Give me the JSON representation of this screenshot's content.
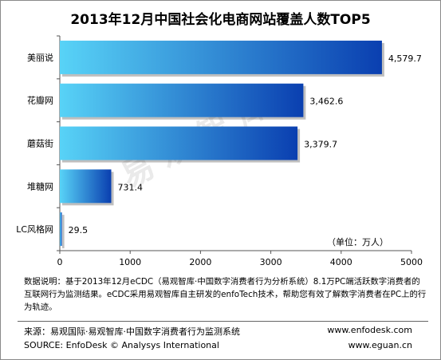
{
  "chart_data": {
    "type": "bar",
    "orientation": "horizontal",
    "title": "2013年12月中国社会化电商网站覆盖人数TOP5",
    "categories": [
      "美丽说",
      "花瓣网",
      "蘑菇街",
      "堆糖网",
      "LC风格网"
    ],
    "values": [
      4579.7,
      3462.6,
      3379.7,
      731.4,
      29.5
    ],
    "value_labels": [
      "4,579.7",
      "3,462.6",
      "3,379.7",
      "731.4",
      "29.5"
    ],
    "xlim": [
      0,
      5000
    ],
    "xticks": [
      "0",
      "1000",
      "2000",
      "3000",
      "4000",
      "5000"
    ],
    "unit": "（单位：万人）",
    "grid": false,
    "bar_color_start": "#58d3f7",
    "bar_color_end": "#0a3fb0"
  },
  "watermark": "易观智库",
  "note": "数据说明：基于2013年12月eCDC（易观智库·中国数字消费者行为分析系统）8.1万PC端活跃数字消费者的互联网行为监测结果。eCDC采用易观智库自主研发的enfoTech技术，帮助您有效了解数字消费者在PC上的行为轨迹。",
  "source_cn": "来源：易观国际·易观智库·中国数字消费者行为监测系统",
  "source_en": "SOURCE: EnfoDesk © Analysys International",
  "website1": "www.enfodesk.com",
  "website2": "www.eguan.cn"
}
